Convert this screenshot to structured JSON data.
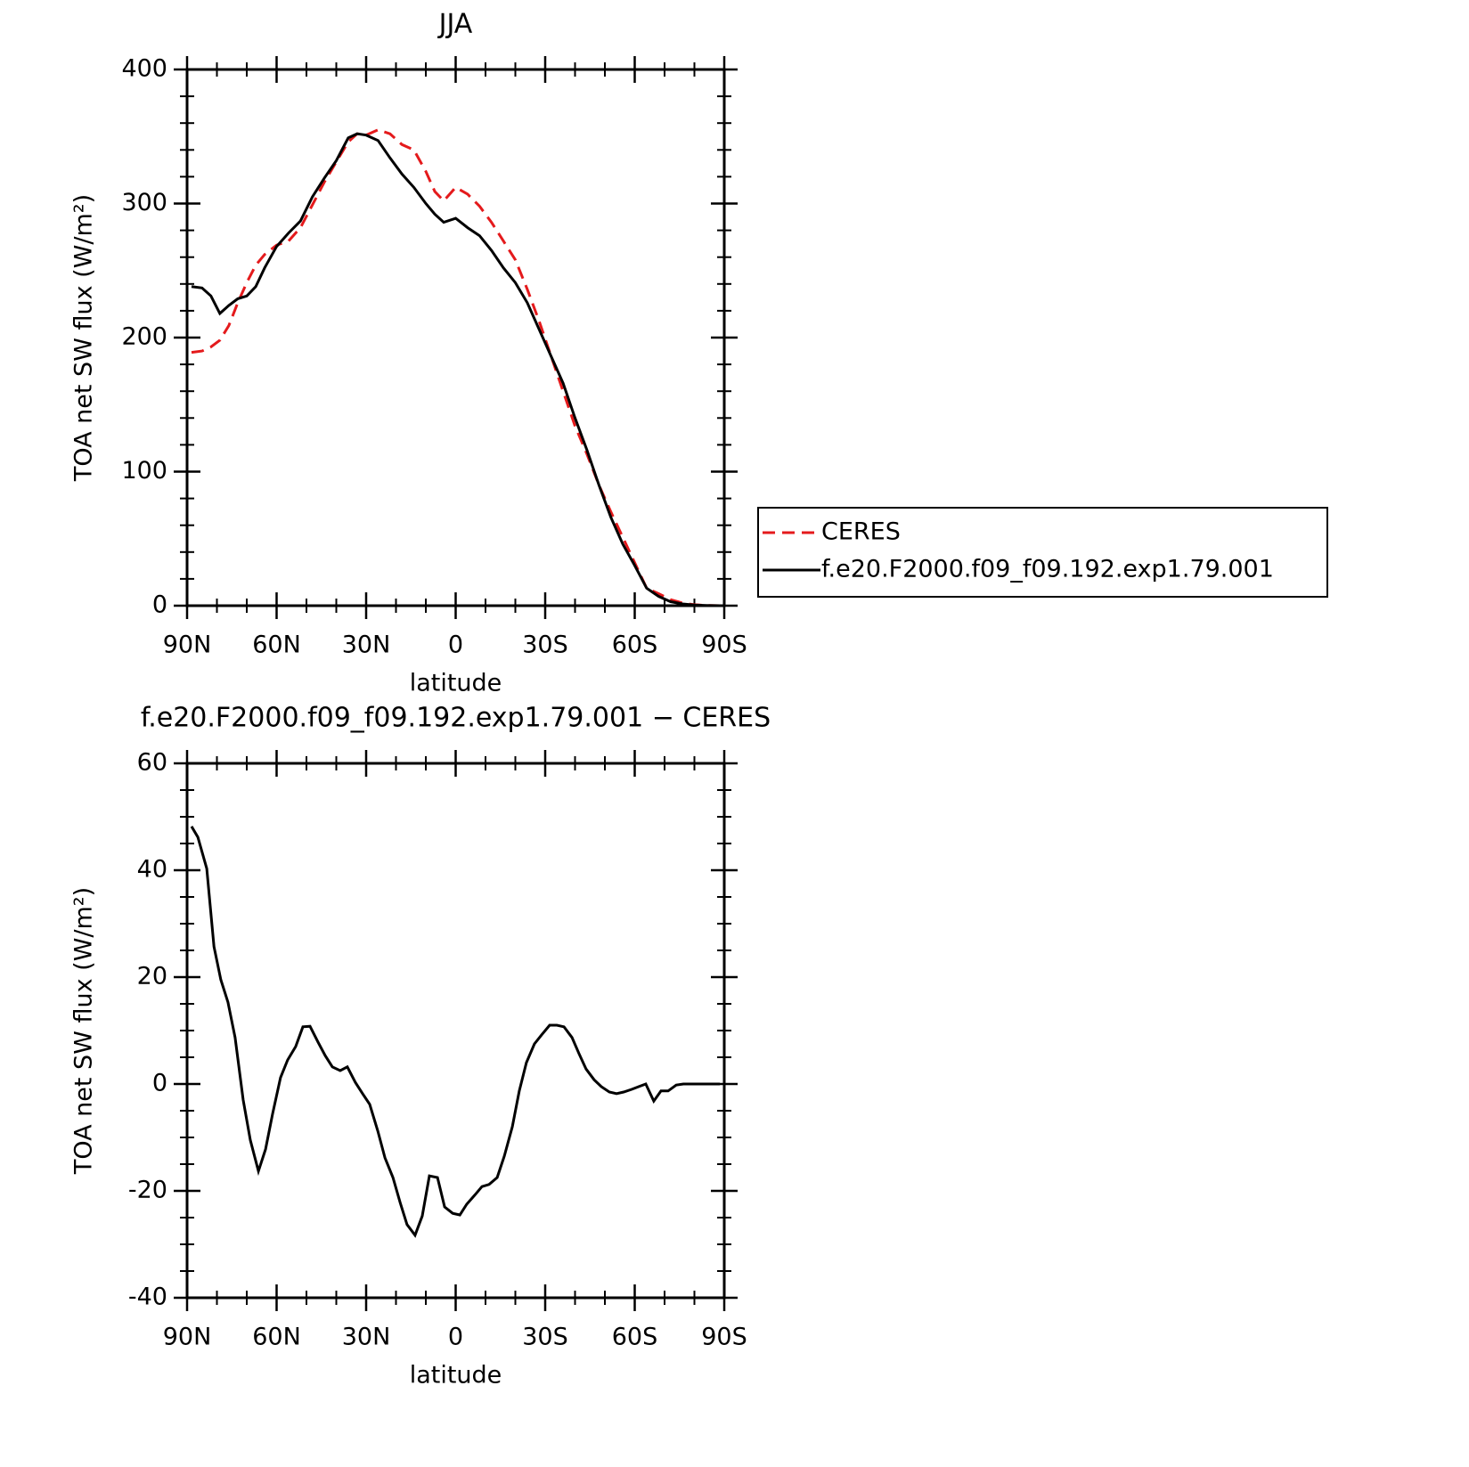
{
  "chart_data": [
    {
      "type": "line",
      "title": "JJA",
      "xlabel": "latitude",
      "ylabel": "TOA net SW flux (W/m²)",
      "x": [
        88.5,
        85,
        82,
        79,
        76,
        73,
        70,
        67,
        64,
        60,
        56,
        52,
        48,
        44,
        40,
        36,
        33,
        30,
        26,
        22,
        18,
        14,
        10,
        7,
        4,
        0,
        -4,
        -8,
        -12,
        -16,
        -20,
        -24,
        -28,
        -32,
        -36,
        -40,
        -44,
        -48,
        -52,
        -56,
        -60,
        -64,
        -68,
        -72,
        -76,
        -80,
        -84,
        -88.5
      ],
      "series": [
        {
          "name": "CERES",
          "color": "#e41a1c",
          "dash": "dashed",
          "values": [
            189,
            190,
            193,
            198,
            209,
            226,
            241,
            254,
            262,
            269,
            272,
            282,
            299,
            316,
            331,
            346,
            352,
            351,
            355,
            352,
            344,
            340,
            324,
            309,
            302,
            312,
            307,
            298,
            286,
            272,
            258,
            236,
            212,
            186,
            160,
            134,
            113,
            90,
            70,
            51,
            32,
            13,
            9,
            4.5,
            2,
            0.7,
            0.2,
            0
          ]
        },
        {
          "name": "f.e20.F2000.f09_f09.192.exp1.79.001",
          "color": "#000000",
          "dash": "solid",
          "values": [
            238,
            237,
            231,
            218,
            224,
            229,
            231,
            238,
            252,
            268,
            278,
            287,
            305,
            319,
            332,
            349,
            352,
            351,
            347,
            334,
            322,
            312,
            300,
            292,
            286,
            289,
            282,
            276,
            265,
            252,
            241,
            226,
            206,
            186,
            166,
            140,
            116,
            90,
            66,
            46,
            30,
            13,
            7,
            3,
            1.3,
            0.5,
            0.2,
            0
          ]
        }
      ],
      "xlim": [
        90,
        -90
      ],
      "xticks": [
        {
          "value": 90,
          "label": "90N"
        },
        {
          "value": 60,
          "label": "60N"
        },
        {
          "value": 30,
          "label": "30N"
        },
        0,
        {
          "value": -30,
          "label": "30S"
        },
        {
          "value": -60,
          "label": "60S"
        },
        {
          "value": -90,
          "label": "90S"
        }
      ],
      "xminorticks": [
        80,
        70,
        50,
        40,
        20,
        10,
        -10,
        -20,
        -40,
        -50,
        -70,
        -80
      ],
      "ylim": [
        0,
        400
      ],
      "yticks": [
        0,
        100,
        200,
        300,
        400
      ],
      "yminorticks": [
        20,
        40,
        60,
        80,
        120,
        140,
        160,
        180,
        220,
        240,
        260,
        280,
        320,
        340,
        360,
        380
      ],
      "legend": "right"
    },
    {
      "type": "line",
      "title": "f.e20.F2000.f09_f09.192.exp1.79.001 − CERES",
      "xlabel": "latitude",
      "ylabel": "TOA net SW flux (W/m²)",
      "x": [
        88.5,
        86.4,
        83.4,
        81,
        78.7,
        76.3,
        73.9,
        71.2,
        68.8,
        66.1,
        63.7,
        61.3,
        58.7,
        56.3,
        53.6,
        51.2,
        48.8,
        46.1,
        43.7,
        41.3,
        38.7,
        36.3,
        33.6,
        31.2,
        28.8,
        26.1,
        23.7,
        21,
        18.6,
        16.3,
        13.6,
        11.2,
        8.8,
        6.1,
        3.7,
        1,
        -1.4,
        -3.7,
        -6.4,
        -8.8,
        -11.2,
        -13.9,
        -16.3,
        -19,
        -21.3,
        -23.7,
        -26.4,
        -28.8,
        -31.5,
        -33.9,
        -36.3,
        -39,
        -41.3,
        -43.7,
        -46.4,
        -48.8,
        -51.5,
        -53.9,
        -56.3,
        -59,
        -61.3,
        -63.7,
        -66.4,
        -68.8,
        -71.2,
        -73.9,
        -76.3,
        -78.7,
        -81.4,
        -83.7,
        -88.5
      ],
      "series": [
        {
          "color": "#000000",
          "dash": "solid",
          "values": [
            48.2,
            46.2,
            40.3,
            25.7,
            19.5,
            15.3,
            8.7,
            -3,
            -10.5,
            -16.3,
            -12.2,
            -5.5,
            1.2,
            4.5,
            7,
            10.7,
            10.8,
            7.8,
            5.3,
            3.2,
            2.5,
            3.2,
            0.3,
            -1.8,
            -3.8,
            -8.8,
            -13.8,
            -17.5,
            -22.2,
            -26.3,
            -28.3,
            -24.7,
            -17.2,
            -17.5,
            -23,
            -24.2,
            -24.5,
            -22.5,
            -20.8,
            -19.2,
            -18.8,
            -17.5,
            -13.5,
            -8,
            -1.3,
            4,
            7.5,
            9.2,
            11,
            11,
            10.7,
            8.7,
            5.7,
            2.8,
            0.8,
            -0.5,
            -1.5,
            -1.8,
            -1.5,
            -1,
            -0.5,
            0,
            -3.2,
            -1.3,
            -1.3,
            -0.2,
            0,
            0,
            0,
            0,
            0
          ]
        }
      ],
      "xlim": [
        90,
        -90
      ],
      "xticks": [
        {
          "value": 90,
          "label": "90N"
        },
        {
          "value": 60,
          "label": "60N"
        },
        {
          "value": 30,
          "label": "30N"
        },
        0,
        {
          "value": -30,
          "label": "30S"
        },
        {
          "value": -60,
          "label": "60S"
        },
        {
          "value": -90,
          "label": "90S"
        }
      ],
      "xminorticks": [
        80,
        70,
        50,
        40,
        20,
        10,
        -10,
        -20,
        -40,
        -50,
        -70,
        -80
      ],
      "ylim": [
        -40,
        60
      ],
      "yticks": [
        -40,
        -20,
        0,
        20,
        40,
        60
      ],
      "yminorticks": [
        -35,
        -30,
        -25,
        -15,
        -10,
        -5,
        5,
        10,
        15,
        25,
        30,
        35,
        45,
        50,
        55
      ]
    }
  ]
}
